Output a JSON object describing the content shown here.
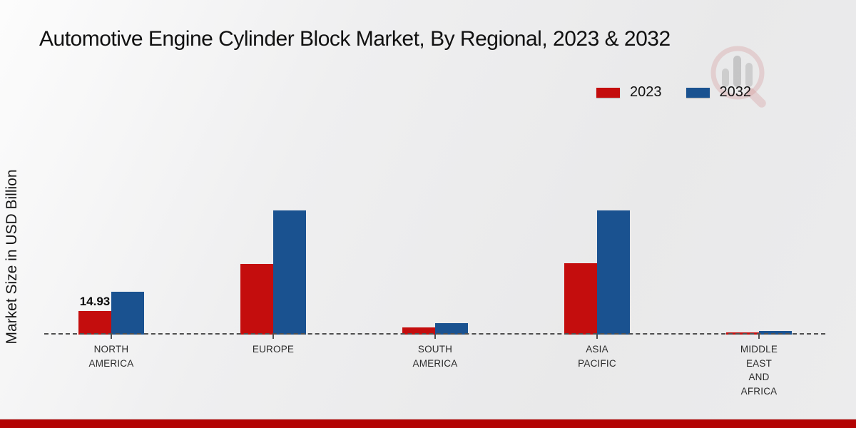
{
  "title": "Automotive Engine Cylinder Block Market, By Regional, 2023 & 2032",
  "y_axis_label": "Market Size in USD Billion",
  "legend": {
    "items": [
      {
        "label": "2023",
        "color": "#c40d0d"
      },
      {
        "label": "2032",
        "color": "#1a5290"
      }
    ]
  },
  "colors": {
    "series_2023": "#c40d0d",
    "series_2032": "#1a5290",
    "baseline": "#4f4f4f",
    "footer_stripe": "#b30404",
    "background": "#ececed"
  },
  "watermark": {
    "name": "magnifier-bar-chart-logo"
  },
  "chart_data": {
    "type": "bar",
    "title": "Automotive Engine Cylinder Block Market, By Regional, 2023 & 2032",
    "xlabel": "",
    "ylabel": "Market Size in USD Billion",
    "categories": [
      "NORTH AMERICA",
      "EUROPE",
      "SOUTH AMERICA",
      "ASIA PACIFIC",
      "MIDDLE EAST AND AFRICA"
    ],
    "series": [
      {
        "name": "2023",
        "color": "#c40d0d",
        "values": [
          14.93,
          44.8,
          4.6,
          45.2,
          1.4
        ]
      },
      {
        "name": "2032",
        "color": "#1a5290",
        "values": [
          27.2,
          78.7,
          7.3,
          78.9,
          2.3
        ]
      }
    ],
    "data_labels": [
      {
        "category": "NORTH AMERICA",
        "series": "2023",
        "text": "14.93"
      }
    ],
    "ylim": [
      0,
      90
    ],
    "grid": false,
    "legend_position": "top-right",
    "baseline_style": "dashed"
  }
}
